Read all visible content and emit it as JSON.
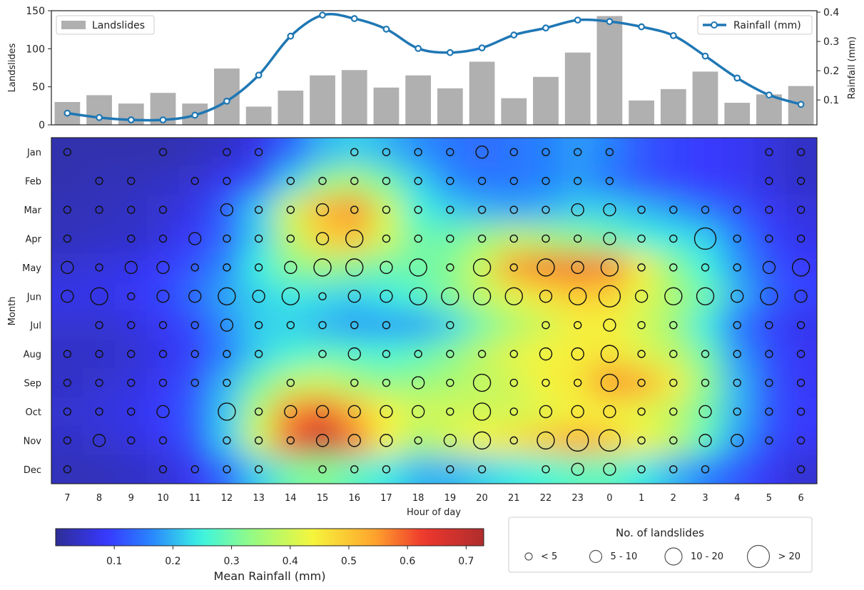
{
  "chart_data": [
    {
      "type": "bar",
      "x_label_hidden": true,
      "categories": [
        "7",
        "8",
        "9",
        "10",
        "11",
        "12",
        "13",
        "14",
        "15",
        "16",
        "17",
        "18",
        "19",
        "20",
        "21",
        "22",
        "23",
        "0",
        "1",
        "2",
        "3",
        "4",
        "5",
        "6"
      ],
      "ylabel": "Landslides",
      "ylim": [
        0,
        150
      ],
      "yticks": [
        0,
        50,
        100,
        150
      ],
      "series": [
        {
          "name": "Landslides",
          "values": [
            30,
            39,
            28,
            42,
            28,
            74,
            24,
            45,
            65,
            72,
            49,
            65,
            48,
            83,
            35,
            63,
            95,
            143,
            32,
            47,
            70,
            29,
            40,
            51
          ],
          "color": "#b0b0b0"
        }
      ],
      "legend_position": "top-left"
    },
    {
      "type": "line",
      "secondary_axis": true,
      "categories": [
        "7",
        "8",
        "9",
        "10",
        "11",
        "12",
        "13",
        "14",
        "15",
        "16",
        "17",
        "18",
        "19",
        "20",
        "21",
        "22",
        "23",
        "0",
        "1",
        "2",
        "3",
        "4",
        "5",
        "6"
      ],
      "ylabel": "Rainfall (mm)",
      "ylim": [
        0.015,
        0.405
      ],
      "yticks": [
        0.1,
        0.2,
        0.3,
        0.4
      ],
      "series": [
        {
          "name": "Rainfall (mm)",
          "values": [
            0.055,
            0.04,
            0.032,
            0.032,
            0.048,
            0.096,
            0.185,
            0.318,
            0.39,
            0.378,
            0.342,
            0.276,
            0.262,
            0.278,
            0.322,
            0.346,
            0.373,
            0.368,
            0.35,
            0.32,
            0.25,
            0.175,
            0.117,
            0.085
          ],
          "color": "#1f77b4"
        }
      ],
      "legend_position": "top-right"
    },
    {
      "type": "heatmap",
      "xlabel": "Hour of day",
      "ylabel": "Month",
      "x_categories": [
        "7",
        "8",
        "9",
        "10",
        "11",
        "12",
        "13",
        "14",
        "15",
        "16",
        "17",
        "18",
        "19",
        "20",
        "21",
        "22",
        "23",
        "0",
        "1",
        "2",
        "3",
        "4",
        "5",
        "6"
      ],
      "y_categories": [
        "Jan",
        "Feb",
        "Mar",
        "Apr",
        "May",
        "Jun",
        "Jul",
        "Aug",
        "Sep",
        "Oct",
        "Nov",
        "Dec"
      ],
      "colorbar_label": "Mean Rainfall (mm)",
      "colorbar_ticks": [
        0.1,
        0.2,
        0.3,
        0.4,
        0.5,
        0.6,
        0.7
      ],
      "color_range": [
        0.0,
        0.73
      ],
      "values": [
        [
          0.02,
          0.02,
          0.02,
          0.02,
          0.03,
          0.04,
          0.07,
          0.13,
          0.2,
          0.22,
          0.2,
          0.17,
          0.15,
          0.14,
          0.15,
          0.16,
          0.18,
          0.16,
          0.12,
          0.1,
          0.09,
          0.08,
          0.06,
          0.04
        ],
        [
          0.02,
          0.03,
          0.03,
          0.04,
          0.05,
          0.08,
          0.12,
          0.22,
          0.33,
          0.36,
          0.3,
          0.22,
          0.17,
          0.15,
          0.15,
          0.16,
          0.18,
          0.15,
          0.12,
          0.1,
          0.09,
          0.08,
          0.06,
          0.04
        ],
        [
          0.03,
          0.03,
          0.04,
          0.05,
          0.07,
          0.13,
          0.22,
          0.4,
          0.52,
          0.56,
          0.4,
          0.26,
          0.22,
          0.2,
          0.19,
          0.2,
          0.22,
          0.22,
          0.2,
          0.18,
          0.15,
          0.12,
          0.08,
          0.06
        ],
        [
          0.03,
          0.04,
          0.04,
          0.06,
          0.09,
          0.14,
          0.22,
          0.38,
          0.48,
          0.5,
          0.4,
          0.3,
          0.3,
          0.34,
          0.38,
          0.36,
          0.33,
          0.3,
          0.26,
          0.24,
          0.22,
          0.16,
          0.1,
          0.07
        ],
        [
          0.05,
          0.06,
          0.07,
          0.09,
          0.12,
          0.17,
          0.25,
          0.32,
          0.34,
          0.32,
          0.3,
          0.3,
          0.32,
          0.4,
          0.55,
          0.58,
          0.58,
          0.57,
          0.45,
          0.33,
          0.25,
          0.18,
          0.12,
          0.09
        ],
        [
          0.07,
          0.07,
          0.08,
          0.1,
          0.14,
          0.19,
          0.22,
          0.24,
          0.23,
          0.22,
          0.24,
          0.27,
          0.32,
          0.38,
          0.42,
          0.46,
          0.49,
          0.48,
          0.42,
          0.36,
          0.3,
          0.2,
          0.13,
          0.1
        ],
        [
          0.05,
          0.05,
          0.06,
          0.08,
          0.11,
          0.17,
          0.22,
          0.22,
          0.2,
          0.18,
          0.18,
          0.18,
          0.22,
          0.3,
          0.36,
          0.4,
          0.44,
          0.44,
          0.4,
          0.34,
          0.24,
          0.15,
          0.1,
          0.07
        ],
        [
          0.04,
          0.04,
          0.05,
          0.07,
          0.1,
          0.16,
          0.22,
          0.26,
          0.28,
          0.27,
          0.26,
          0.28,
          0.32,
          0.38,
          0.42,
          0.44,
          0.45,
          0.46,
          0.42,
          0.38,
          0.3,
          0.18,
          0.11,
          0.08
        ],
        [
          0.04,
          0.05,
          0.06,
          0.08,
          0.12,
          0.2,
          0.3,
          0.38,
          0.4,
          0.36,
          0.33,
          0.34,
          0.36,
          0.38,
          0.4,
          0.44,
          0.46,
          0.56,
          0.54,
          0.45,
          0.33,
          0.2,
          0.12,
          0.08
        ],
        [
          0.05,
          0.06,
          0.07,
          0.09,
          0.13,
          0.22,
          0.38,
          0.56,
          0.6,
          0.52,
          0.44,
          0.4,
          0.4,
          0.4,
          0.4,
          0.42,
          0.44,
          0.44,
          0.42,
          0.38,
          0.3,
          0.2,
          0.12,
          0.09
        ],
        [
          0.04,
          0.05,
          0.06,
          0.08,
          0.12,
          0.22,
          0.4,
          0.6,
          0.7,
          0.58,
          0.44,
          0.36,
          0.4,
          0.44,
          0.46,
          0.5,
          0.54,
          0.5,
          0.44,
          0.38,
          0.28,
          0.18,
          0.11,
          0.08
        ],
        [
          0.03,
          0.03,
          0.04,
          0.05,
          0.08,
          0.14,
          0.22,
          0.3,
          0.32,
          0.28,
          0.24,
          0.2,
          0.2,
          0.22,
          0.24,
          0.26,
          0.28,
          0.28,
          0.24,
          0.2,
          0.16,
          0.12,
          0.08,
          0.05
        ]
      ],
      "bubbles": [
        [
          1,
          0,
          0,
          1,
          0,
          1,
          1,
          0,
          0,
          1,
          1,
          1,
          1,
          2,
          1,
          1,
          1,
          1,
          0,
          0,
          0,
          0,
          1,
          1
        ],
        [
          0,
          1,
          1,
          0,
          1,
          1,
          0,
          1,
          1,
          1,
          1,
          1,
          1,
          1,
          1,
          1,
          1,
          1,
          0,
          0,
          0,
          0,
          1,
          1
        ],
        [
          1,
          1,
          1,
          1,
          0,
          2,
          1,
          1,
          2,
          1,
          1,
          1,
          1,
          1,
          1,
          1,
          2,
          2,
          1,
          1,
          1,
          1,
          1,
          1
        ],
        [
          1,
          0,
          1,
          1,
          2,
          1,
          1,
          1,
          2,
          3,
          1,
          1,
          1,
          1,
          1,
          1,
          1,
          2,
          1,
          1,
          4,
          1,
          1,
          1
        ],
        [
          2,
          1,
          2,
          2,
          1,
          1,
          1,
          2,
          3,
          3,
          2,
          3,
          1,
          3,
          1,
          3,
          2,
          3,
          1,
          1,
          1,
          1,
          2,
          3
        ],
        [
          2,
          3,
          1,
          2,
          2,
          3,
          2,
          3,
          1,
          2,
          2,
          3,
          3,
          3,
          3,
          2,
          3,
          4,
          2,
          3,
          3,
          2,
          3,
          2
        ],
        [
          0,
          1,
          1,
          1,
          1,
          2,
          1,
          1,
          1,
          1,
          1,
          0,
          1,
          0,
          0,
          1,
          1,
          2,
          1,
          1,
          0,
          1,
          1,
          1
        ],
        [
          1,
          1,
          1,
          1,
          1,
          1,
          1,
          0,
          1,
          2,
          1,
          1,
          1,
          1,
          1,
          2,
          2,
          3,
          1,
          1,
          1,
          1,
          1,
          1
        ],
        [
          1,
          1,
          1,
          1,
          1,
          1,
          0,
          1,
          0,
          1,
          1,
          2,
          1,
          3,
          1,
          1,
          1,
          3,
          1,
          1,
          1,
          1,
          1,
          1
        ],
        [
          1,
          1,
          1,
          2,
          0,
          3,
          1,
          2,
          2,
          2,
          2,
          2,
          1,
          3,
          1,
          2,
          2,
          2,
          1,
          1,
          2,
          1,
          1,
          1
        ],
        [
          1,
          2,
          1,
          1,
          0,
          1,
          1,
          1,
          2,
          2,
          2,
          1,
          2,
          3,
          1,
          3,
          4,
          4,
          1,
          1,
          2,
          2,
          1,
          1
        ],
        [
          1,
          0,
          0,
          1,
          1,
          1,
          1,
          0,
          1,
          1,
          1,
          0,
          1,
          1,
          0,
          1,
          2,
          2,
          1,
          1,
          1,
          0,
          0,
          1
        ]
      ],
      "bubble_legend_title": "No. of landslides",
      "bubble_legend": [
        "< 5",
        "5 - 10",
        "10 - 20",
        "> 20"
      ]
    }
  ]
}
